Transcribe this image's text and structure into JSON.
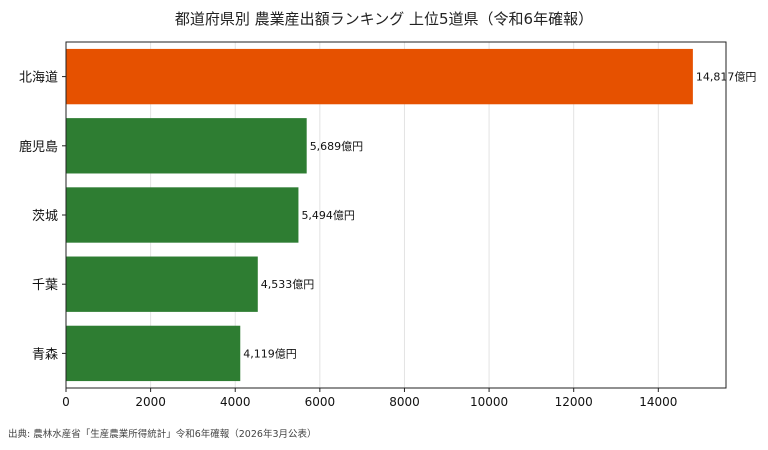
{
  "chart_data": {
    "type": "bar",
    "orientation": "horizontal",
    "title": "都道府県別 農業産出額ランキング 上位5道県（令和6年確報）",
    "categories": [
      "北海道",
      "鹿児島",
      "茨城",
      "千葉",
      "青森"
    ],
    "values": [
      14817,
      5689,
      5494,
      4533,
      4119
    ],
    "value_labels": [
      "14,817億円",
      "5,689億円",
      "5,494億円",
      "4,533億円",
      "4,119億円"
    ],
    "xlim": [
      0,
      15600
    ],
    "xticks": [
      0,
      2000,
      4000,
      6000,
      8000,
      10000,
      12000,
      14000
    ],
    "grid": true,
    "colors": {
      "highlight": "#e65100",
      "default": "#2e7d32"
    },
    "highlight_index": 0,
    "source": "出典: 農林水産省「生産農業所得統計」令和6年確報（2026年3月公表）"
  }
}
